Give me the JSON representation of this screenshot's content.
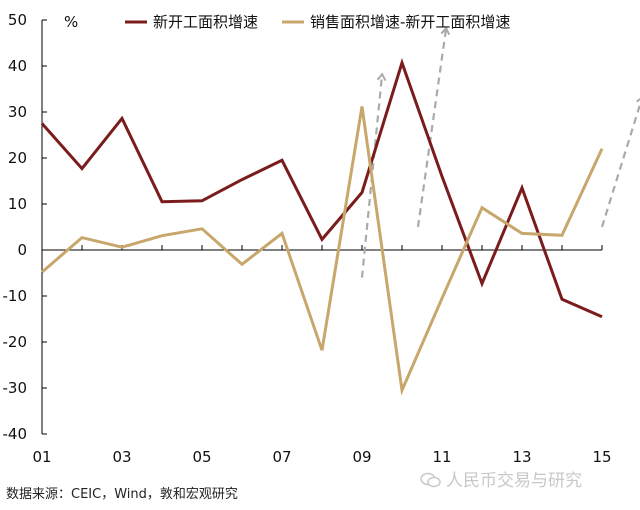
{
  "chart_data": {
    "type": "line",
    "categories": [
      "01",
      "02",
      "03",
      "04",
      "05",
      "06",
      "07",
      "08",
      "09",
      "10",
      "11",
      "12",
      "13",
      "14",
      "15"
    ],
    "x_tick_labels": [
      "01",
      "03",
      "05",
      "07",
      "09",
      "11",
      "13",
      "15"
    ],
    "y_ticks": [
      50,
      40,
      30,
      20,
      10,
      0,
      -10,
      -20,
      -30,
      -40
    ],
    "ylim": [
      -40,
      50
    ],
    "unit": "%",
    "grid": false,
    "legend_position": "top",
    "series": [
      {
        "name": "新开工面积增速",
        "color": "#7B1C1C",
        "values": [
          27.5,
          17.7,
          28.6,
          10.5,
          10.7,
          15.3,
          19.5,
          2.3,
          12.5,
          40.7,
          16.0,
          -7.3,
          13.5,
          -10.7,
          -14.5
        ]
      },
      {
        "name": "销售面积增速-新开工面积增速",
        "color": "#C8A76C",
        "values": [
          -4.8,
          2.7,
          0.6,
          3.1,
          4.6,
          -3.1,
          3.6,
          -21.8,
          31.2,
          -30.5,
          -10.5,
          9.2,
          3.6,
          3.2,
          22.0
        ]
      }
    ],
    "arrows": [
      {
        "from": [
          8,
          -6
        ],
        "to": [
          8.5,
          38
        ]
      },
      {
        "from": [
          9.4,
          5
        ],
        "to": [
          10.1,
          48
        ]
      },
      {
        "from": [
          14,
          5
        ],
        "to": [
          15.0,
          33
        ]
      },
      {
        "from": [
          15,
          -13
        ],
        "to": [
          15.6,
          14
        ]
      }
    ],
    "arrow_color": "#AAAAAA"
  },
  "source_text": "数据来源：CEIC，Wind，敦和宏观研究",
  "watermark_text": "人民币交易与研究"
}
